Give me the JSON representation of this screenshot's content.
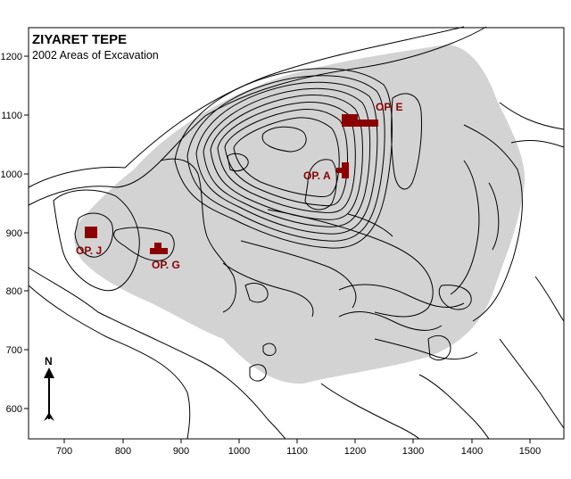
{
  "map": {
    "title": "ZIYARET TEPE",
    "subtitle": "2002 Areas of Excavation",
    "north_label": "N",
    "x_ticks": [
      "700",
      "800",
      "900",
      "1000",
      "1100",
      "1200",
      "1300",
      "1400",
      "1500"
    ],
    "y_ticks": [
      "1200",
      "1100",
      "1000",
      "900",
      "800",
      "700",
      "600"
    ],
    "operations": [
      {
        "label": "OP. E"
      },
      {
        "label": "OP. A"
      },
      {
        "label": "OP. J"
      },
      {
        "label": "OP. G"
      }
    ],
    "colors": {
      "excavation_area": "#d3d3d3",
      "trench": "#8b0000",
      "label": "#8b0000",
      "contour": "#000000"
    }
  }
}
